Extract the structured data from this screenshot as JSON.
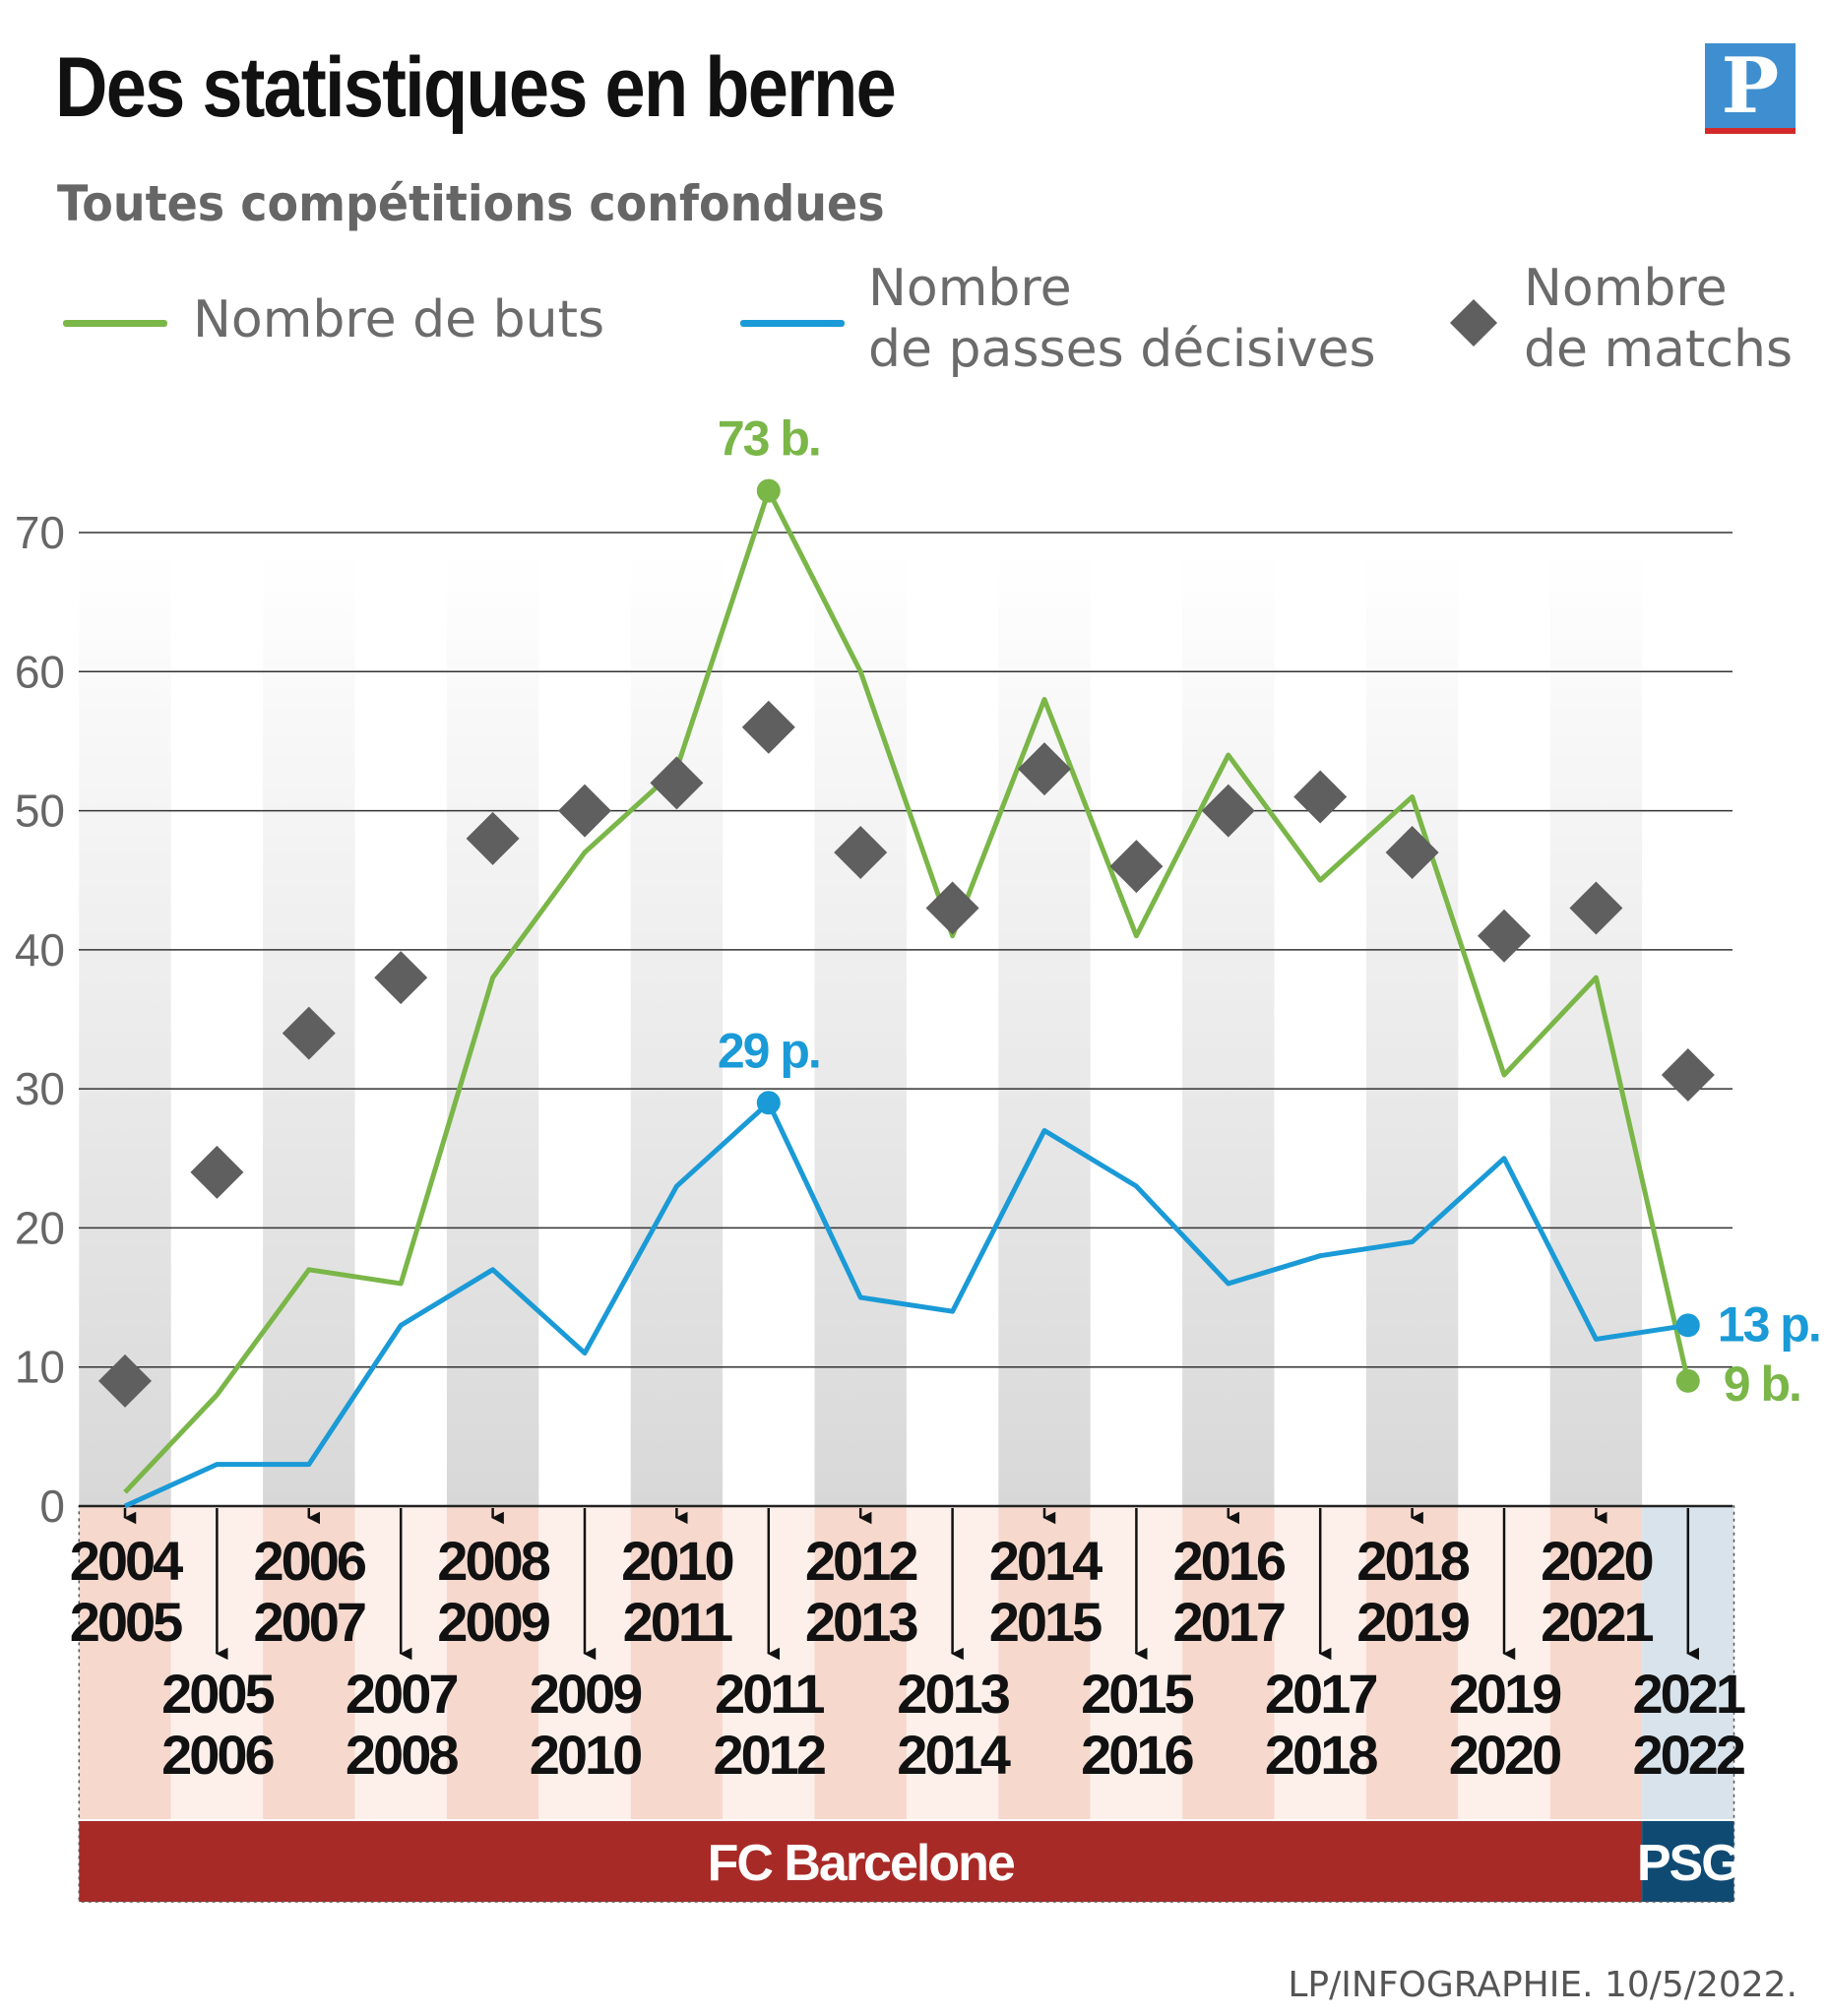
{
  "header": {
    "title": "Des statistiques en berne",
    "subtitle": "Toutes compétitions confondues",
    "logo_letter": "P"
  },
  "legend": {
    "goals": "Nombre de buts",
    "assists_line1": "Nombre",
    "assists_line2": "de passes décisives",
    "matches_line1": "Nombre",
    "matches_line2": "de matchs"
  },
  "colors": {
    "goals": "#7ab648",
    "assists": "#1a9ad6",
    "matches": "#5f5f5f",
    "barcelona": "#a82a26",
    "psg": "#0f4a73"
  },
  "chart_data": {
    "type": "line",
    "title": "Des statistiques en berne",
    "subtitle": "Toutes compétitions confondues",
    "ylim": [
      0,
      70
    ],
    "yticks": [
      0,
      10,
      20,
      30,
      40,
      50,
      60,
      70
    ],
    "grid": true,
    "categories": [
      "2004 2005",
      "2005 2006",
      "2006 2007",
      "2007 2008",
      "2008 2009",
      "2009 2010",
      "2010 2011",
      "2011 2012",
      "2012 2013",
      "2013 2014",
      "2014 2015",
      "2015 2016",
      "2016 2017",
      "2017 2018",
      "2018 2019",
      "2019 2020",
      "2020 2021",
      "2021 2022"
    ],
    "season_labels": [
      [
        "2004",
        "2005"
      ],
      [
        "2005",
        "2006"
      ],
      [
        "2006",
        "2007"
      ],
      [
        "2007",
        "2008"
      ],
      [
        "2008",
        "2009"
      ],
      [
        "2009",
        "2010"
      ],
      [
        "2010",
        "2011"
      ],
      [
        "2011",
        "2012"
      ],
      [
        "2012",
        "2013"
      ],
      [
        "2013",
        "2014"
      ],
      [
        "2014",
        "2015"
      ],
      [
        "2015",
        "2016"
      ],
      [
        "2016",
        "2017"
      ],
      [
        "2017",
        "2018"
      ],
      [
        "2018",
        "2019"
      ],
      [
        "2019",
        "2020"
      ],
      [
        "2020",
        "2021"
      ],
      [
        "2021",
        "2022"
      ]
    ],
    "series": [
      {
        "name": "Nombre de buts",
        "kind": "line",
        "values": [
          1,
          8,
          17,
          16,
          38,
          47,
          53,
          73,
          60,
          41,
          58,
          41,
          54,
          45,
          51,
          31,
          38,
          9
        ]
      },
      {
        "name": "Nombre de passes décisives",
        "kind": "line",
        "values": [
          0,
          3,
          3,
          13,
          17,
          11,
          23,
          29,
          15,
          14,
          27,
          23,
          16,
          18,
          19,
          25,
          12,
          13
        ]
      },
      {
        "name": "Nombre de matchs",
        "kind": "marker",
        "values": [
          9,
          24,
          34,
          38,
          48,
          50,
          52,
          56,
          47,
          43,
          53,
          46,
          50,
          51,
          47,
          41,
          43,
          31
        ]
      }
    ],
    "annotations": [
      {
        "series": 0,
        "index": 7,
        "text": "73 b."
      },
      {
        "series": 1,
        "index": 7,
        "text": "29 p."
      },
      {
        "series": 1,
        "index": 17,
        "text": "13 p."
      },
      {
        "series": 0,
        "index": 17,
        "text": "9 b."
      }
    ],
    "clubs": [
      {
        "name": "FC Barcelone",
        "from": 0,
        "to": 16
      },
      {
        "name": "PSG",
        "from": 17,
        "to": 17
      }
    ]
  },
  "footer": {
    "credit": "LP/INFOGRAPHIE. 10/5/2022."
  }
}
